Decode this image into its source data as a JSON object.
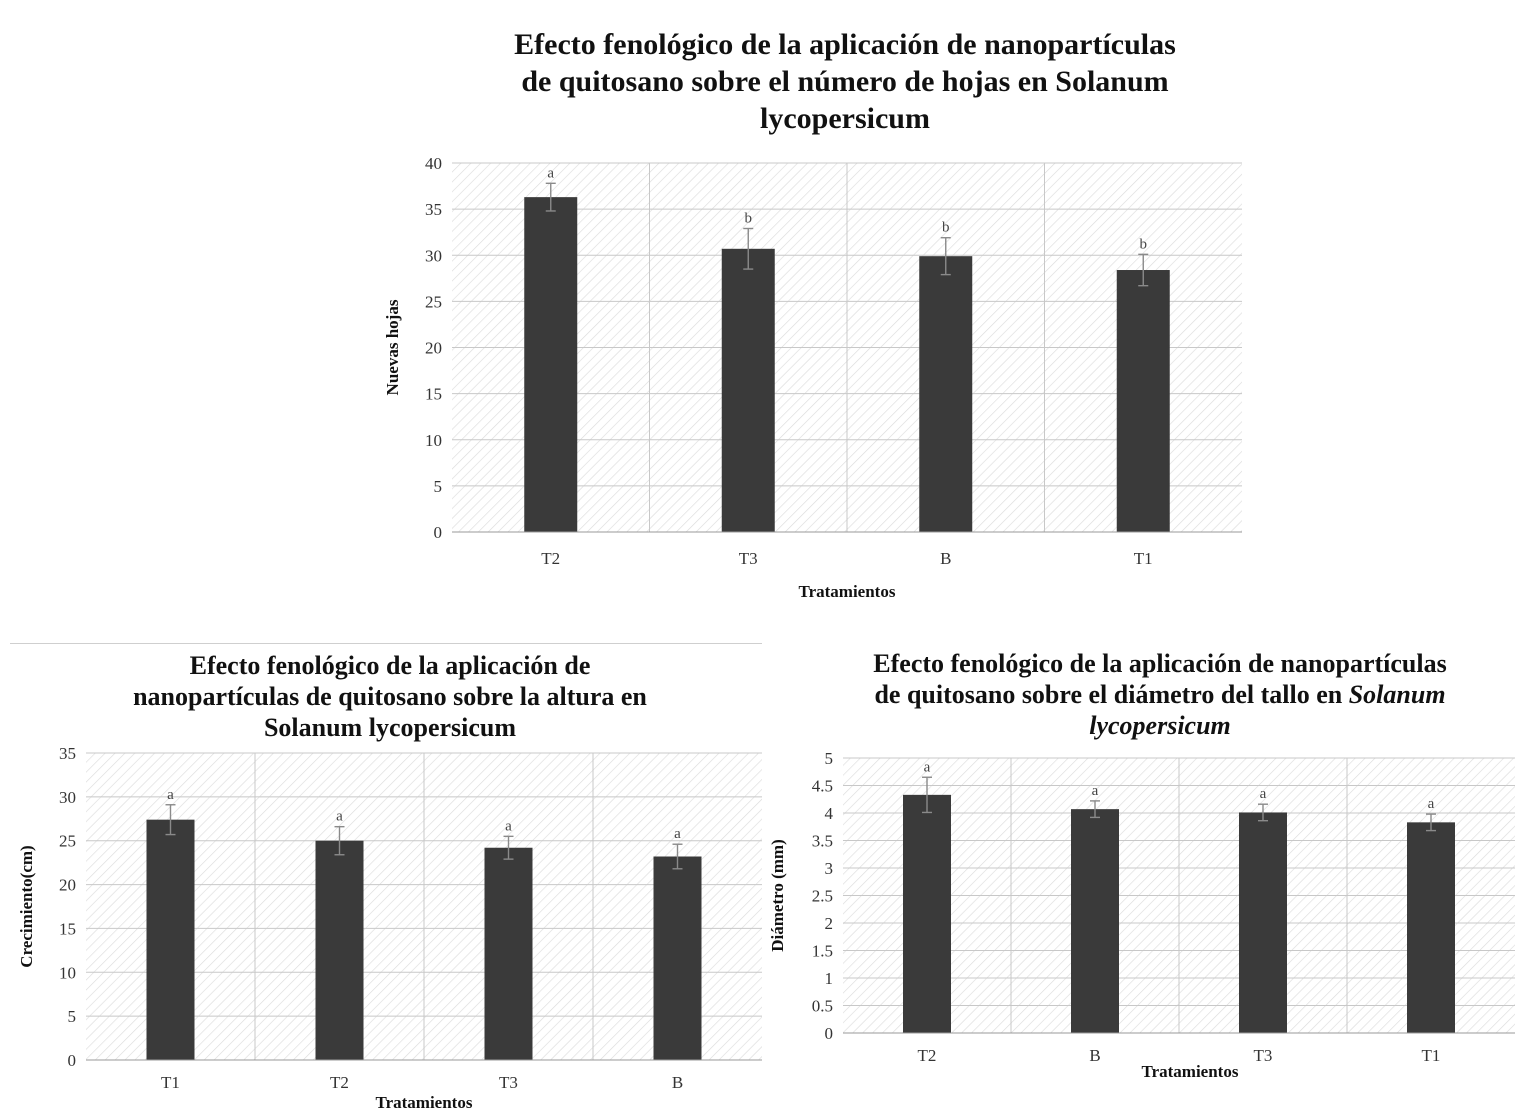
{
  "chart_data": [
    {
      "type": "bar",
      "title_lines": [
        "Efecto fenológico de la aplicación de nanopartículas",
        "de quitosano sobre el número de hojas en Solanum",
        "lycopersicum"
      ],
      "categories": [
        "T2",
        "T3",
        "B",
        "T1"
      ],
      "values": [
        36.3,
        30.7,
        29.9,
        28.4
      ],
      "errors": [
        1.5,
        2.2,
        2.0,
        1.7
      ],
      "significance": [
        "a",
        "b",
        "b",
        "b"
      ],
      "xlabel": "Tratamientos",
      "ylabel": "Nuevas hojas",
      "ylim": [
        0,
        40
      ],
      "yticks": [
        "0",
        "5",
        "10",
        "15",
        "20",
        "25",
        "30",
        "35",
        "40"
      ],
      "grid": true,
      "colors": {
        "bar": "#3a3a3a",
        "error": "#8a8a8a",
        "grid": "#c8c8c8",
        "hatch": "#dcdcdc"
      }
    },
    {
      "type": "bar",
      "title_lines": [
        "Efecto fenológico de la aplicación de",
        "nanopartículas de quitosano sobre la altura en",
        "Solanum lycopersicum"
      ],
      "categories": [
        "T1",
        "T2",
        "T3",
        "B"
      ],
      "values": [
        27.4,
        25.0,
        24.2,
        23.2
      ],
      "errors": [
        1.7,
        1.6,
        1.3,
        1.4
      ],
      "significance": [
        "a",
        "a",
        "a",
        "a"
      ],
      "xlabel": "Tratamientos",
      "ylabel": "Crecimiento(cm)",
      "ylim": [
        0,
        35
      ],
      "yticks": [
        "0",
        "5",
        "10",
        "15",
        "20",
        "25",
        "30",
        "35"
      ],
      "grid": true,
      "colors": {
        "bar": "#3a3a3a",
        "error": "#8a8a8a",
        "grid": "#c8c8c8",
        "hatch": "#dcdcdc"
      }
    },
    {
      "type": "bar",
      "title_lines": [
        "Efecto fenológico de la aplicación de nanopartículas",
        "de quitosano sobre el diámetro del tallo en",
        "Solanum",
        "lycopersicum"
      ],
      "categories": [
        "T2",
        "B",
        "T3",
        "T1"
      ],
      "values": [
        4.33,
        4.07,
        4.01,
        3.83
      ],
      "errors": [
        0.32,
        0.15,
        0.15,
        0.15
      ],
      "significance": [
        "a",
        "a",
        "a",
        "a"
      ],
      "xlabel": "Tratamientos",
      "ylabel": "Diámetro (mm)",
      "ylim": [
        0,
        5
      ],
      "yticks": [
        "0",
        "0.5",
        "1",
        "1.5",
        "2",
        "2.5",
        "3",
        "3.5",
        "4",
        "4.5",
        "5"
      ],
      "grid": true,
      "colors": {
        "bar": "#3a3a3a",
        "error": "#8a8a8a",
        "grid": "#c8c8c8",
        "hatch": "#dcdcdc"
      }
    }
  ]
}
